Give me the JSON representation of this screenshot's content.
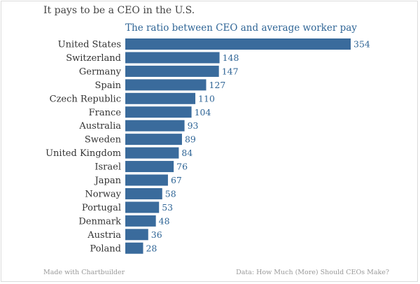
{
  "chart_data": {
    "type": "bar",
    "orientation": "horizontal",
    "title": "It pays to be a CEO in the U.S.",
    "subtitle": "The ratio between CEO and average worker pay",
    "categories": [
      "United States",
      "Switzerland",
      "Germany",
      "Spain",
      "Czech Republic",
      "France",
      "Australia",
      "Sweden",
      "United Kingdom",
      "Israel",
      "Japan",
      "Norway",
      "Portugal",
      "Denmark",
      "Austria",
      "Poland"
    ],
    "values": [
      354,
      148,
      147,
      127,
      110,
      104,
      93,
      89,
      84,
      76,
      67,
      58,
      53,
      48,
      36,
      28
    ],
    "xlim": [
      0,
      354
    ],
    "grid": false,
    "bar_color": "#3a6b9c",
    "value_label_color": "#2f6596"
  },
  "footer": {
    "left": "Made with Chartbuilder",
    "right": "Data: How Much (More) Should CEOs Make?"
  }
}
